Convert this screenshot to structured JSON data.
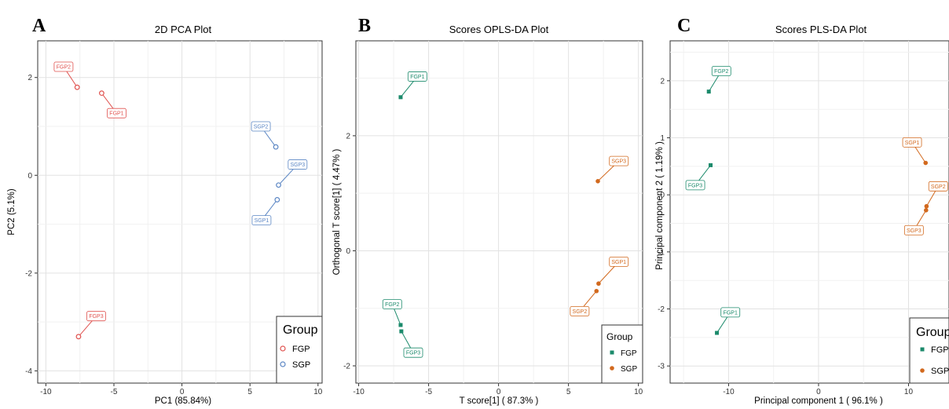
{
  "chart_data": [
    {
      "panel": "A",
      "type": "scatter",
      "title": "2D PCA Plot",
      "xlabel": "PC1 (85.84%)",
      "ylabel": "PC2 (5.1%)",
      "xlim": [
        -10.6,
        10.3
      ],
      "ylim": [
        -4.25,
        2.75
      ],
      "xticks": [
        -10,
        -5,
        0,
        5,
        10
      ],
      "yticks": [
        -4,
        -2,
        0,
        2
      ],
      "marker": "circle-open",
      "legend": {
        "title": "Group",
        "position": "bottom-right"
      },
      "series": [
        {
          "name": "FGP",
          "color": "#e0524f",
          "points": [
            {
              "label": "FGP1",
              "x": -5.9,
              "y": 1.68,
              "lx": -4.8,
              "ly": 1.27
            },
            {
              "label": "FGP2",
              "x": -7.7,
              "y": 1.8,
              "lx": -8.7,
              "ly": 2.22
            },
            {
              "label": "FGP3",
              "x": -7.6,
              "y": -3.3,
              "lx": -6.3,
              "ly": -2.88
            }
          ]
        },
        {
          "name": "SGP",
          "color": "#5b86c4",
          "points": [
            {
              "label": "SGP1",
              "x": 7.0,
              "y": -0.5,
              "lx": 5.85,
              "ly": -0.92
            },
            {
              "label": "SGP2",
              "x": 6.9,
              "y": 0.58,
              "lx": 5.8,
              "ly": 1.0
            },
            {
              "label": "SGP3",
              "x": 7.1,
              "y": -0.2,
              "lx": 8.5,
              "ly": 0.22
            }
          ]
        }
      ]
    },
    {
      "panel": "B",
      "type": "scatter",
      "title": "Scores OPLS-DA Plot",
      "xlabel": "T score[1] ( 87.3% )",
      "ylabel": "Orthogonal T score[1] ( 4.47% )",
      "xlim": [
        -10.2,
        10.3
      ],
      "ylim": [
        -2.3,
        3.65
      ],
      "xticks": [
        -10,
        -5,
        0,
        5,
        10
      ],
      "yticks": [
        -2,
        0,
        2
      ],
      "marker": "filled",
      "legend": {
        "title": "Group",
        "position": "bottom-right"
      },
      "series": [
        {
          "name": "FGP",
          "color": "#1b8a6b",
          "marker": "square",
          "points": [
            {
              "label": "FGP1",
              "x": -7.0,
              "y": 2.67,
              "lx": -5.8,
              "ly": 3.03
            },
            {
              "label": "FGP2",
              "x": -7.0,
              "y": -1.29,
              "lx": -7.6,
              "ly": -0.93
            },
            {
              "label": "FGP3",
              "x": -6.95,
              "y": -1.4,
              "lx": -6.1,
              "ly": -1.77
            }
          ]
        },
        {
          "name": "SGP",
          "color": "#d2691e",
          "marker": "circle",
          "points": [
            {
              "label": "SGP1",
              "x": 7.15,
              "y": -0.57,
              "lx": 8.6,
              "ly": -0.19
            },
            {
              "label": "SGP2",
              "x": 7.0,
              "y": -0.7,
              "lx": 5.8,
              "ly": -1.05
            },
            {
              "label": "SGP3",
              "x": 7.1,
              "y": 1.21,
              "lx": 8.6,
              "ly": 1.56
            }
          ]
        }
      ]
    },
    {
      "panel": "C",
      "type": "scatter",
      "title": "Scores PLS-DA Plot",
      "xlabel": "Principal component 1 ( 96.1% )",
      "ylabel": "Principal component 2 ( 1.19% )",
      "xlim": [
        -16.5,
        14.5
      ],
      "ylim": [
        -3.3,
        2.7
      ],
      "xticks": [
        -10,
        0,
        10
      ],
      "yticks": [
        -3,
        -2,
        -1,
        0,
        1,
        2
      ],
      "marker": "filled",
      "legend": {
        "title": "Group",
        "position": "bottom-right"
      },
      "series": [
        {
          "name": "FGP",
          "color": "#1b8a6b",
          "marker": "square",
          "points": [
            {
              "label": "FGP1",
              "x": -11.3,
              "y": -2.42,
              "lx": -9.8,
              "ly": -2.06
            },
            {
              "label": "FGP2",
              "x": -12.2,
              "y": 1.81,
              "lx": -10.8,
              "ly": 2.17
            },
            {
              "label": "FGP3",
              "x": -12.0,
              "y": 0.52,
              "lx": -13.7,
              "ly": 0.17
            }
          ]
        },
        {
          "name": "SGP",
          "color": "#d2691e",
          "marker": "circle",
          "points": [
            {
              "label": "SGP1",
              "x": 11.9,
              "y": 0.56,
              "lx": 10.4,
              "ly": 0.92
            },
            {
              "label": "SGP2",
              "x": 12.0,
              "y": -0.2,
              "lx": 13.3,
              "ly": 0.15
            },
            {
              "label": "SGP3",
              "x": 11.95,
              "y": -0.27,
              "lx": 10.6,
              "ly": -0.62
            }
          ]
        }
      ]
    }
  ]
}
